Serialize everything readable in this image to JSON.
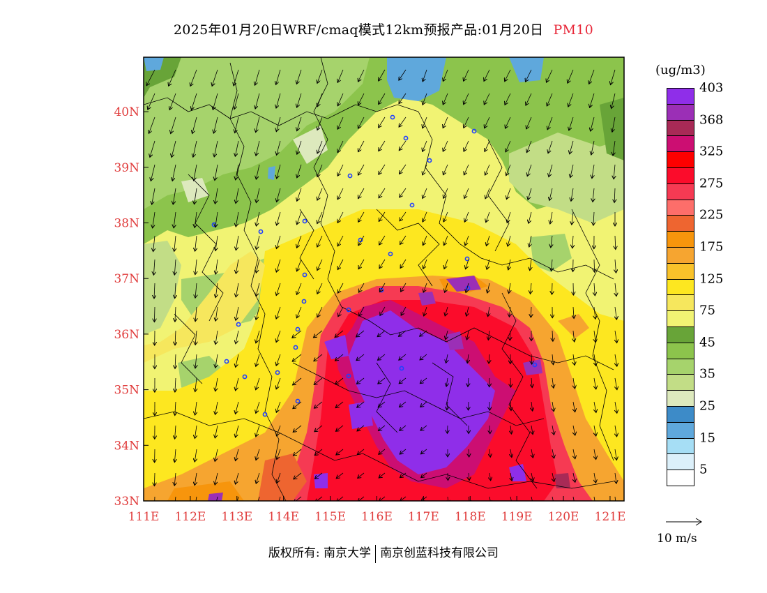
{
  "header": {
    "title": "2025年01月20日WRF/cmaq模式12km预报产品:01月20日",
    "variable": "PM10"
  },
  "map": {
    "x_ticks": [
      "111E",
      "112E",
      "113E",
      "114E",
      "115E",
      "116E",
      "117E",
      "118E",
      "119E",
      "120E",
      "121E"
    ],
    "y_ticks": [
      "33N",
      "34N",
      "35N",
      "36N",
      "37N",
      "38N",
      "39N",
      "40N"
    ],
    "lon_range": [
      111,
      121.3
    ],
    "lat_range": [
      33,
      40.98
    ]
  },
  "legend": {
    "units": "(ug/m3)",
    "labels": [
      "5",
      "15",
      "25",
      "35",
      "45",
      "75",
      "125",
      "175",
      "225",
      "275",
      "325",
      "368",
      "403"
    ],
    "colors": [
      "#ffffff",
      "#dcf0fa",
      "#a6def5",
      "#5fa8dc",
      "#3d8bc8",
      "#dde9bd",
      "#c2dd86",
      "#a6d36c",
      "#8cc44c",
      "#68a438",
      "#f1f373",
      "#f6e75d",
      "#fde720",
      "#f9c22a",
      "#f6a530",
      "#f7950c",
      "#ee6530",
      "#fd6e6a",
      "#f63a53",
      "#fb0c2b",
      "#fd0000",
      "#cc0e72",
      "#a82a56",
      "#9b2fb6",
      "#8f2ee9"
    ],
    "ref_vector_label": "10 m/s"
  },
  "footer": {
    "copyright_left": "版权所有: 南京大学",
    "copyright_right": "南京创蓝科技有限公司"
  }
}
